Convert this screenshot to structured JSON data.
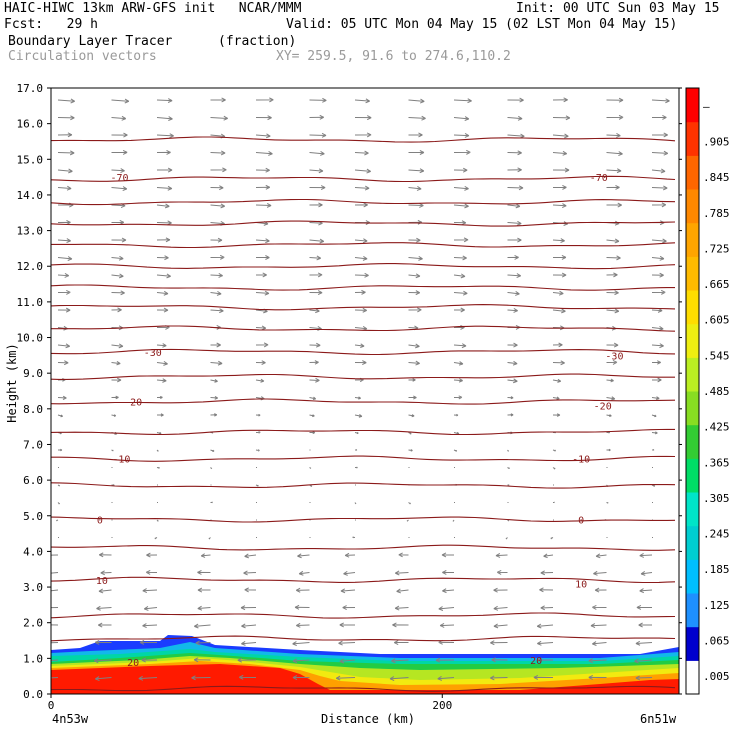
{
  "header": {
    "left1": "HAIC-HIWC 13km ARW-GFS init   NCAR/MMM",
    "right1": "Init: 00 UTC Sun 03 May 15",
    "left2": "Fcst:   29 h",
    "right2": "Valid: 05 UTC Mon 04 May 15 (02 LST Mon 04 May 15)",
    "field_name": "Boundary Layer Tracer",
    "field_units": "(fraction)",
    "vector_name": "Circulation vectors",
    "xy_range": "XY= 259.5, 91.6 to 274.6,110.2"
  },
  "colors": {
    "contour": "#8b1a1a",
    "vectors": "#808080",
    "scale": [
      "#ffffff",
      "#0000cd",
      "#1e90ff",
      "#00bfff",
      "#00ced1",
      "#00e5c8",
      "#00dd66",
      "#33cc33",
      "#88dd22",
      "#bbee22",
      "#eeee11",
      "#ffdd00",
      "#ffbb00",
      "#ffa500",
      "#ff8800",
      "#ff6600",
      "#ff3300",
      "#ff0000"
    ]
  },
  "chart_data": {
    "type": "contour cross-section",
    "ylabel": "Height (km)",
    "xlabel": "Distance (km)",
    "ylim": [
      0,
      17
    ],
    "xlim": [
      0,
      321
    ],
    "y_ticks": [
      "0.0",
      "1.0",
      "2.0",
      "3.0",
      "4.0",
      "5.0",
      "6.0",
      "7.0",
      "8.0",
      "9.0",
      "10.0",
      "11.0",
      "12.0",
      "13.0",
      "14.0",
      "15.0",
      "16.0",
      "17.0"
    ],
    "x_tick_values": [
      0,
      200
    ],
    "x_tick_labels": [
      "0",
      "200"
    ],
    "x_endpoints": [
      "4n53w",
      "6n51w"
    ],
    "colorbar_labels": [
      ".005",
      ".065",
      ".125",
      ".185",
      ".245",
      ".305",
      ".365",
      ".425",
      ".485",
      ".545",
      ".605",
      ".665",
      ".725",
      ".785",
      ".845",
      ".905",
      "–"
    ],
    "contour_labels": [
      {
        "text": "-70",
        "x": 35,
        "y": 14.5
      },
      {
        "text": "-70",
        "x": 280,
        "y": 14.5
      },
      {
        "text": "-30",
        "x": 52,
        "y": 9.6
      },
      {
        "text": "-30",
        "x": 288,
        "y": 9.5
      },
      {
        "text": "-20",
        "x": 42,
        "y": 8.2
      },
      {
        "text": "-20",
        "x": 282,
        "y": 8.1
      },
      {
        "text": "-10",
        "x": 36,
        "y": 6.6
      },
      {
        "text": "-10",
        "x": 271,
        "y": 6.6
      },
      {
        "text": "0",
        "x": 25,
        "y": 4.9
      },
      {
        "text": "0",
        "x": 271,
        "y": 4.9
      },
      {
        "text": "10",
        "x": 26,
        "y": 3.2
      },
      {
        "text": "10",
        "x": 271,
        "y": 3.1
      },
      {
        "text": "20",
        "x": 42,
        "y": 0.9
      },
      {
        "text": "20",
        "x": 248,
        "y": 0.95
      }
    ],
    "contour_levels_km": [
      0.15,
      1.55,
      2.2,
      3.2,
      4.1,
      4.9,
      5.85,
      6.6,
      7.35,
      8.2,
      8.9,
      9.6,
      10.25,
      10.85,
      11.4,
      12.0,
      12.6,
      13.2,
      13.8,
      14.45,
      15.55
    ]
  }
}
